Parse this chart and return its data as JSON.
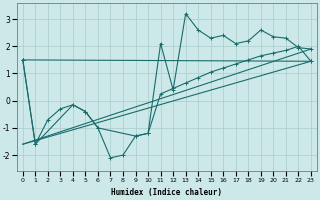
{
  "xlabel": "Humidex (Indice chaleur)",
  "background_color": "#cce8e8",
  "grid_color": "#aacccc",
  "line_color": "#1a6b6b",
  "xlim": [
    -0.5,
    23.5
  ],
  "ylim": [
    -2.6,
    3.6
  ],
  "yticks": [
    -2,
    -1,
    0,
    1,
    2,
    3
  ],
  "xticks": [
    0,
    1,
    2,
    3,
    4,
    5,
    6,
    7,
    8,
    9,
    10,
    11,
    12,
    13,
    14,
    15,
    16,
    17,
    18,
    19,
    20,
    21,
    22,
    23
  ],
  "series": [
    {
      "x": [
        0,
        1,
        2,
        3,
        4,
        5,
        6,
        7,
        8,
        9,
        10,
        11,
        12,
        13,
        14,
        15,
        16,
        17,
        18,
        19,
        20,
        21,
        22,
        23
      ],
      "y": [
        1.5,
        -1.6,
        -0.7,
        -0.3,
        -0.15,
        -0.4,
        -1.0,
        -2.1,
        -2.0,
        -1.3,
        -1.2,
        2.1,
        0.4,
        3.2,
        2.6,
        2.3,
        2.4,
        2.1,
        2.2,
        2.6,
        2.35,
        2.3,
        1.95,
        1.9
      ]
    },
    {
      "x": [
        0,
        1,
        4,
        5,
        6,
        9,
        10,
        11,
        12,
        13,
        14,
        15,
        16,
        17,
        18,
        19,
        20,
        21,
        22,
        23
      ],
      "y": [
        1.5,
        -1.6,
        -0.15,
        -0.4,
        -1.0,
        -1.3,
        -1.2,
        0.25,
        0.45,
        0.65,
        0.85,
        1.05,
        1.2,
        1.35,
        1.5,
        1.65,
        1.75,
        1.85,
        2.0,
        1.45
      ]
    },
    {
      "x": [
        0,
        23
      ],
      "y": [
        1.5,
        1.45
      ]
    }
  ]
}
